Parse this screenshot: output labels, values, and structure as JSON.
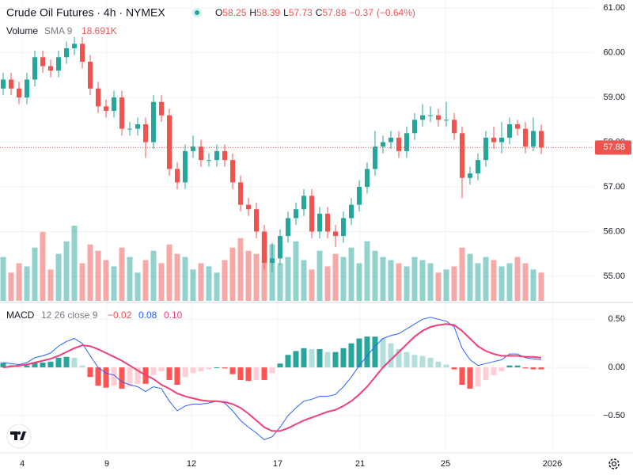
{
  "chart_data": {
    "type": "candlestick",
    "title": "Crude Oil Futures · 4h · NYMEX",
    "ohlc_legend": [
      {
        "prefix": "O",
        "value": 58.25,
        "label": "58.25"
      },
      {
        "prefix": "H",
        "value": 58.39,
        "label": "58.39"
      },
      {
        "prefix": "L",
        "value": 57.73,
        "label": "57.73"
      },
      {
        "prefix": "C",
        "value": 57.88,
        "label": "57.88"
      }
    ],
    "change": {
      "value": -0.37,
      "label": "−0.37",
      "percent": -0.64,
      "percent_label": "(−0.64%)"
    },
    "volume_legend": {
      "name": "Volume",
      "study": "SMA 9",
      "value": 18691,
      "label": "18.691K"
    },
    "macd_legend": {
      "name": "MACD",
      "params": "12 26 close 9",
      "histogram": {
        "value": -0.02,
        "label": "−0.02"
      },
      "macd": {
        "value": 0.08,
        "label": "0.08"
      },
      "signal": {
        "value": 0.1,
        "label": "0.10"
      }
    },
    "last_price": {
      "value": 57.88,
      "label": "57.88"
    },
    "up_color": "#26a69a",
    "down_color": "#ef5350",
    "macd_color": "#2962ff",
    "signal_color": "#f23d7a",
    "open": [
      59.2,
      59.4,
      59.2,
      59.0,
      59.4,
      59.9,
      59.7,
      59.6,
      59.9,
      60.1,
      60.2,
      59.8,
      59.2,
      58.8,
      58.7,
      59.0,
      58.3,
      58.3,
      58.4,
      58.0,
      58.9,
      58.6,
      57.4,
      57.1,
      57.8,
      57.9,
      57.6,
      57.6,
      57.8,
      57.6,
      57.1,
      56.6,
      56.5,
      56.0,
      55.3,
      55.4,
      55.9,
      56.3,
      56.5,
      56.8,
      56.0,
      56.4,
      56.0,
      55.9,
      56.3,
      56.6,
      57.0,
      57.4,
      57.9,
      58.0,
      58.1,
      57.8,
      58.2,
      58.5,
      58.6,
      58.6,
      58.5,
      58.5,
      58.2,
      57.2,
      57.3,
      57.6,
      58.1,
      58.0,
      58.1,
      58.4,
      58.3,
      57.9,
      58.25
    ],
    "high": [
      59.55,
      59.55,
      59.35,
      59.55,
      60.05,
      60.05,
      59.85,
      60.05,
      60.25,
      60.35,
      60.35,
      59.95,
      59.35,
      58.95,
      59.15,
      59.15,
      58.45,
      58.55,
      58.55,
      59.05,
      59.05,
      58.75,
      57.55,
      57.95,
      58.15,
      58.05,
      57.75,
      57.95,
      57.95,
      57.75,
      57.25,
      56.75,
      56.65,
      56.15,
      55.75,
      56.05,
      56.45,
      56.65,
      56.95,
      56.95,
      56.55,
      56.55,
      56.15,
      56.45,
      56.75,
      57.15,
      57.55,
      58.25,
      58.15,
      58.25,
      58.25,
      58.35,
      58.65,
      58.85,
      58.8,
      58.75,
      58.9,
      58.65,
      58.35,
      57.45,
      57.75,
      58.25,
      58.35,
      58.45,
      58.55,
      58.5,
      58.45,
      58.55,
      58.39
    ],
    "low": [
      59.05,
      59.05,
      58.85,
      58.85,
      59.25,
      59.55,
      59.45,
      59.45,
      59.75,
      59.95,
      59.65,
      59.05,
      58.65,
      58.55,
      58.55,
      58.15,
      58.15,
      58.15,
      57.65,
      57.85,
      58.45,
      57.25,
      56.95,
      56.95,
      57.65,
      57.45,
      57.45,
      57.45,
      57.45,
      56.95,
      56.45,
      56.35,
      55.85,
      55.15,
      55.1,
      55.25,
      55.75,
      56.15,
      56.35,
      55.85,
      55.85,
      55.85,
      55.65,
      55.75,
      56.15,
      56.45,
      56.85,
      57.25,
      57.75,
      57.85,
      57.65,
      57.65,
      58.05,
      58.35,
      58.45,
      58.35,
      58.35,
      58.05,
      56.75,
      57.05,
      57.15,
      57.45,
      57.85,
      57.75,
      57.95,
      58.15,
      57.75,
      57.8,
      57.73
    ],
    "close": [
      59.4,
      59.2,
      59.0,
      59.4,
      59.9,
      59.7,
      59.6,
      59.9,
      60.1,
      60.2,
      59.8,
      59.2,
      58.8,
      58.7,
      59.0,
      58.3,
      58.3,
      58.4,
      58.0,
      58.9,
      58.6,
      57.4,
      57.1,
      57.8,
      57.9,
      57.6,
      57.6,
      57.8,
      57.6,
      57.1,
      56.6,
      56.5,
      56.0,
      55.3,
      55.4,
      55.9,
      56.3,
      56.5,
      56.8,
      56.0,
      56.4,
      56.0,
      55.9,
      56.3,
      56.6,
      57.0,
      57.4,
      57.9,
      58.0,
      58.1,
      57.8,
      58.2,
      58.5,
      58.6,
      58.6,
      58.5,
      58.5,
      58.2,
      57.2,
      57.3,
      57.6,
      58.1,
      58.0,
      58.1,
      58.4,
      58.3,
      57.9,
      58.25,
      57.88
    ],
    "volume": [
      14000,
      9000,
      12000,
      11000,
      17000,
      22000,
      10000,
      15000,
      19000,
      24000,
      12000,
      18000,
      16000,
      13000,
      11000,
      17000,
      14000,
      9000,
      13000,
      16000,
      12000,
      18000,
      15000,
      14000,
      10000,
      12000,
      11000,
      9000,
      13000,
      17000,
      20000,
      16000,
      15000,
      22000,
      18000,
      12000,
      14000,
      19000,
      13000,
      10000,
      16000,
      11000,
      15000,
      14000,
      17000,
      12000,
      19000,
      16000,
      14000,
      13000,
      12000,
      11000,
      14000,
      13000,
      12000,
      9000,
      10000,
      11000,
      17000,
      15000,
      12000,
      14000,
      13000,
      11000,
      12000,
      14000,
      12000,
      10000,
      9000
    ],
    "macd": [
      0.05,
      0.04,
      0.03,
      0.05,
      0.1,
      0.12,
      0.15,
      0.22,
      0.27,
      0.3,
      0.25,
      0.12,
      0.0,
      -0.06,
      -0.08,
      -0.15,
      -0.18,
      -0.2,
      -0.25,
      -0.2,
      -0.22,
      -0.35,
      -0.45,
      -0.4,
      -0.38,
      -0.38,
      -0.37,
      -0.35,
      -0.37,
      -0.45,
      -0.55,
      -0.62,
      -0.68,
      -0.75,
      -0.72,
      -0.62,
      -0.5,
      -0.42,
      -0.35,
      -0.33,
      -0.3,
      -0.3,
      -0.28,
      -0.2,
      -0.1,
      0.02,
      0.12,
      0.22,
      0.3,
      0.33,
      0.35,
      0.4,
      0.45,
      0.5,
      0.52,
      0.5,
      0.48,
      0.42,
      0.2,
      0.08,
      0.02,
      0.04,
      0.06,
      0.08,
      0.14,
      0.14,
      0.1,
      0.09,
      0.08
    ],
    "signal": [
      0.0,
      0.01,
      0.02,
      0.03,
      0.05,
      0.07,
      0.09,
      0.12,
      0.16,
      0.2,
      0.23,
      0.22,
      0.19,
      0.15,
      0.11,
      0.07,
      0.02,
      -0.03,
      -0.08,
      -0.12,
      -0.18,
      -0.22,
      -0.27,
      -0.3,
      -0.32,
      -0.34,
      -0.35,
      -0.35,
      -0.36,
      -0.38,
      -0.42,
      -0.48,
      -0.55,
      -0.62,
      -0.66,
      -0.66,
      -0.63,
      -0.59,
      -0.55,
      -0.52,
      -0.49,
      -0.46,
      -0.44,
      -0.4,
      -0.35,
      -0.28,
      -0.2,
      -0.1,
      0.0,
      0.08,
      0.16,
      0.24,
      0.32,
      0.38,
      0.42,
      0.44,
      0.45,
      0.44,
      0.38,
      0.3,
      0.22,
      0.17,
      0.14,
      0.12,
      0.12,
      0.12,
      0.11,
      0.11,
      0.1
    ],
    "histogram": [
      0.05,
      0.03,
      0.01,
      0.02,
      0.05,
      0.05,
      0.06,
      0.1,
      0.11,
      0.1,
      0.02,
      -0.1,
      -0.19,
      -0.21,
      -0.19,
      -0.22,
      -0.2,
      -0.17,
      -0.17,
      -0.08,
      -0.04,
      -0.13,
      -0.18,
      -0.1,
      -0.06,
      -0.04,
      -0.02,
      0.0,
      -0.01,
      -0.07,
      -0.13,
      -0.14,
      -0.13,
      -0.13,
      -0.06,
      0.04,
      0.13,
      0.17,
      0.2,
      0.19,
      0.19,
      0.16,
      0.16,
      0.2,
      0.25,
      0.3,
      0.32,
      0.32,
      0.3,
      0.25,
      0.19,
      0.16,
      0.13,
      0.12,
      0.1,
      0.06,
      0.03,
      -0.02,
      -0.18,
      -0.22,
      -0.2,
      -0.13,
      -0.08,
      -0.04,
      0.02,
      0.02,
      -0.01,
      -0.02,
      -0.02
    ],
    "xlim": [
      -0.4,
      74.6
    ],
    "xticks": [
      {
        "value": 2.4,
        "label": "4"
      },
      {
        "value": 13.1,
        "label": "9"
      },
      {
        "value": 23.8,
        "label": "12"
      },
      {
        "value": 34.7,
        "label": "17"
      },
      {
        "value": 45.1,
        "label": "21"
      },
      {
        "value": 55.9,
        "label": "25"
      },
      {
        "value": 69.4,
        "label": "2026"
      }
    ],
    "ylim": [
      54.45,
      61.18
    ],
    "yticks": [
      {
        "value": 55,
        "label": "55.00"
      },
      {
        "value": 56,
        "label": "56.00"
      },
      {
        "value": 57,
        "label": "57.00"
      },
      {
        "value": 58,
        "label": "58.00"
      },
      {
        "value": 59,
        "label": "59.00"
      },
      {
        "value": 60,
        "label": "60.00"
      },
      {
        "value": 61,
        "label": "61.00"
      }
    ],
    "macd_ylim": [
      -0.87,
      0.65
    ],
    "macd_yticks": [
      {
        "value": 0.5,
        "label": "0.50"
      },
      {
        "value": 0,
        "label": "0.00"
      },
      {
        "value": -0.5,
        "label": "−0.50"
      }
    ],
    "grid": true
  }
}
